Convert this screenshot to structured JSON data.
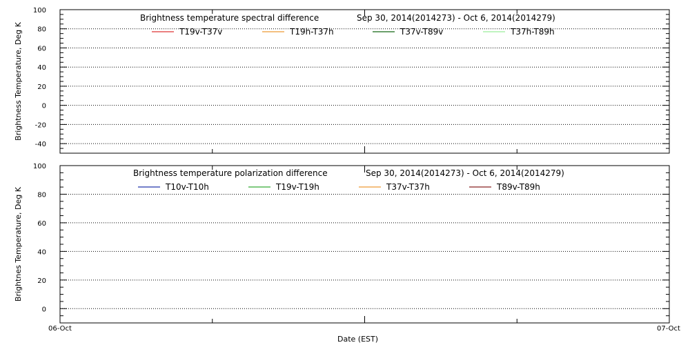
{
  "chart_data": [
    {
      "type": "line",
      "title": "Brightness temperature spectral difference",
      "date_range": "Sep 30, 2014(2014273) - Oct  6, 2014(2014279)",
      "ylabel": "Brightness Temperature, Deg K",
      "ylim": [
        -50,
        100
      ],
      "yticks": [
        100,
        80,
        60,
        40,
        20,
        0,
        -20,
        -40
      ],
      "grid": true,
      "legend_position": "top",
      "series": [
        {
          "name": "T19v-T37v",
          "color": "#dd3333",
          "values": []
        },
        {
          "name": "T19h-T37h",
          "color": "#ee9933",
          "values": []
        },
        {
          "name": "T37v-T89v",
          "color": "#116611",
          "values": []
        },
        {
          "name": "T37h-T89h",
          "color": "#99ee99",
          "values": []
        }
      ]
    },
    {
      "type": "line",
      "title": "Brightness temperature polarization difference",
      "date_range": "Sep 30, 2014(2014273) - Oct  6, 2014(2014279)",
      "ylabel": "Brightnes Temperature, Deg K",
      "xlabel": "Date (EST)",
      "ylim": [
        -10,
        100
      ],
      "yticks": [
        100,
        80,
        60,
        40,
        20,
        0
      ],
      "xticks": [
        "06-Oct",
        "07-Oct"
      ],
      "grid": true,
      "legend_position": "top",
      "series": [
        {
          "name": "T10v-T10h",
          "color": "#2233aa",
          "values": []
        },
        {
          "name": "T19v-T19h",
          "color": "#33aa33",
          "values": []
        },
        {
          "name": "T37v-T37h",
          "color": "#ee9933",
          "values": []
        },
        {
          "name": "T89v-T89h",
          "color": "#882222",
          "values": []
        }
      ]
    }
  ]
}
